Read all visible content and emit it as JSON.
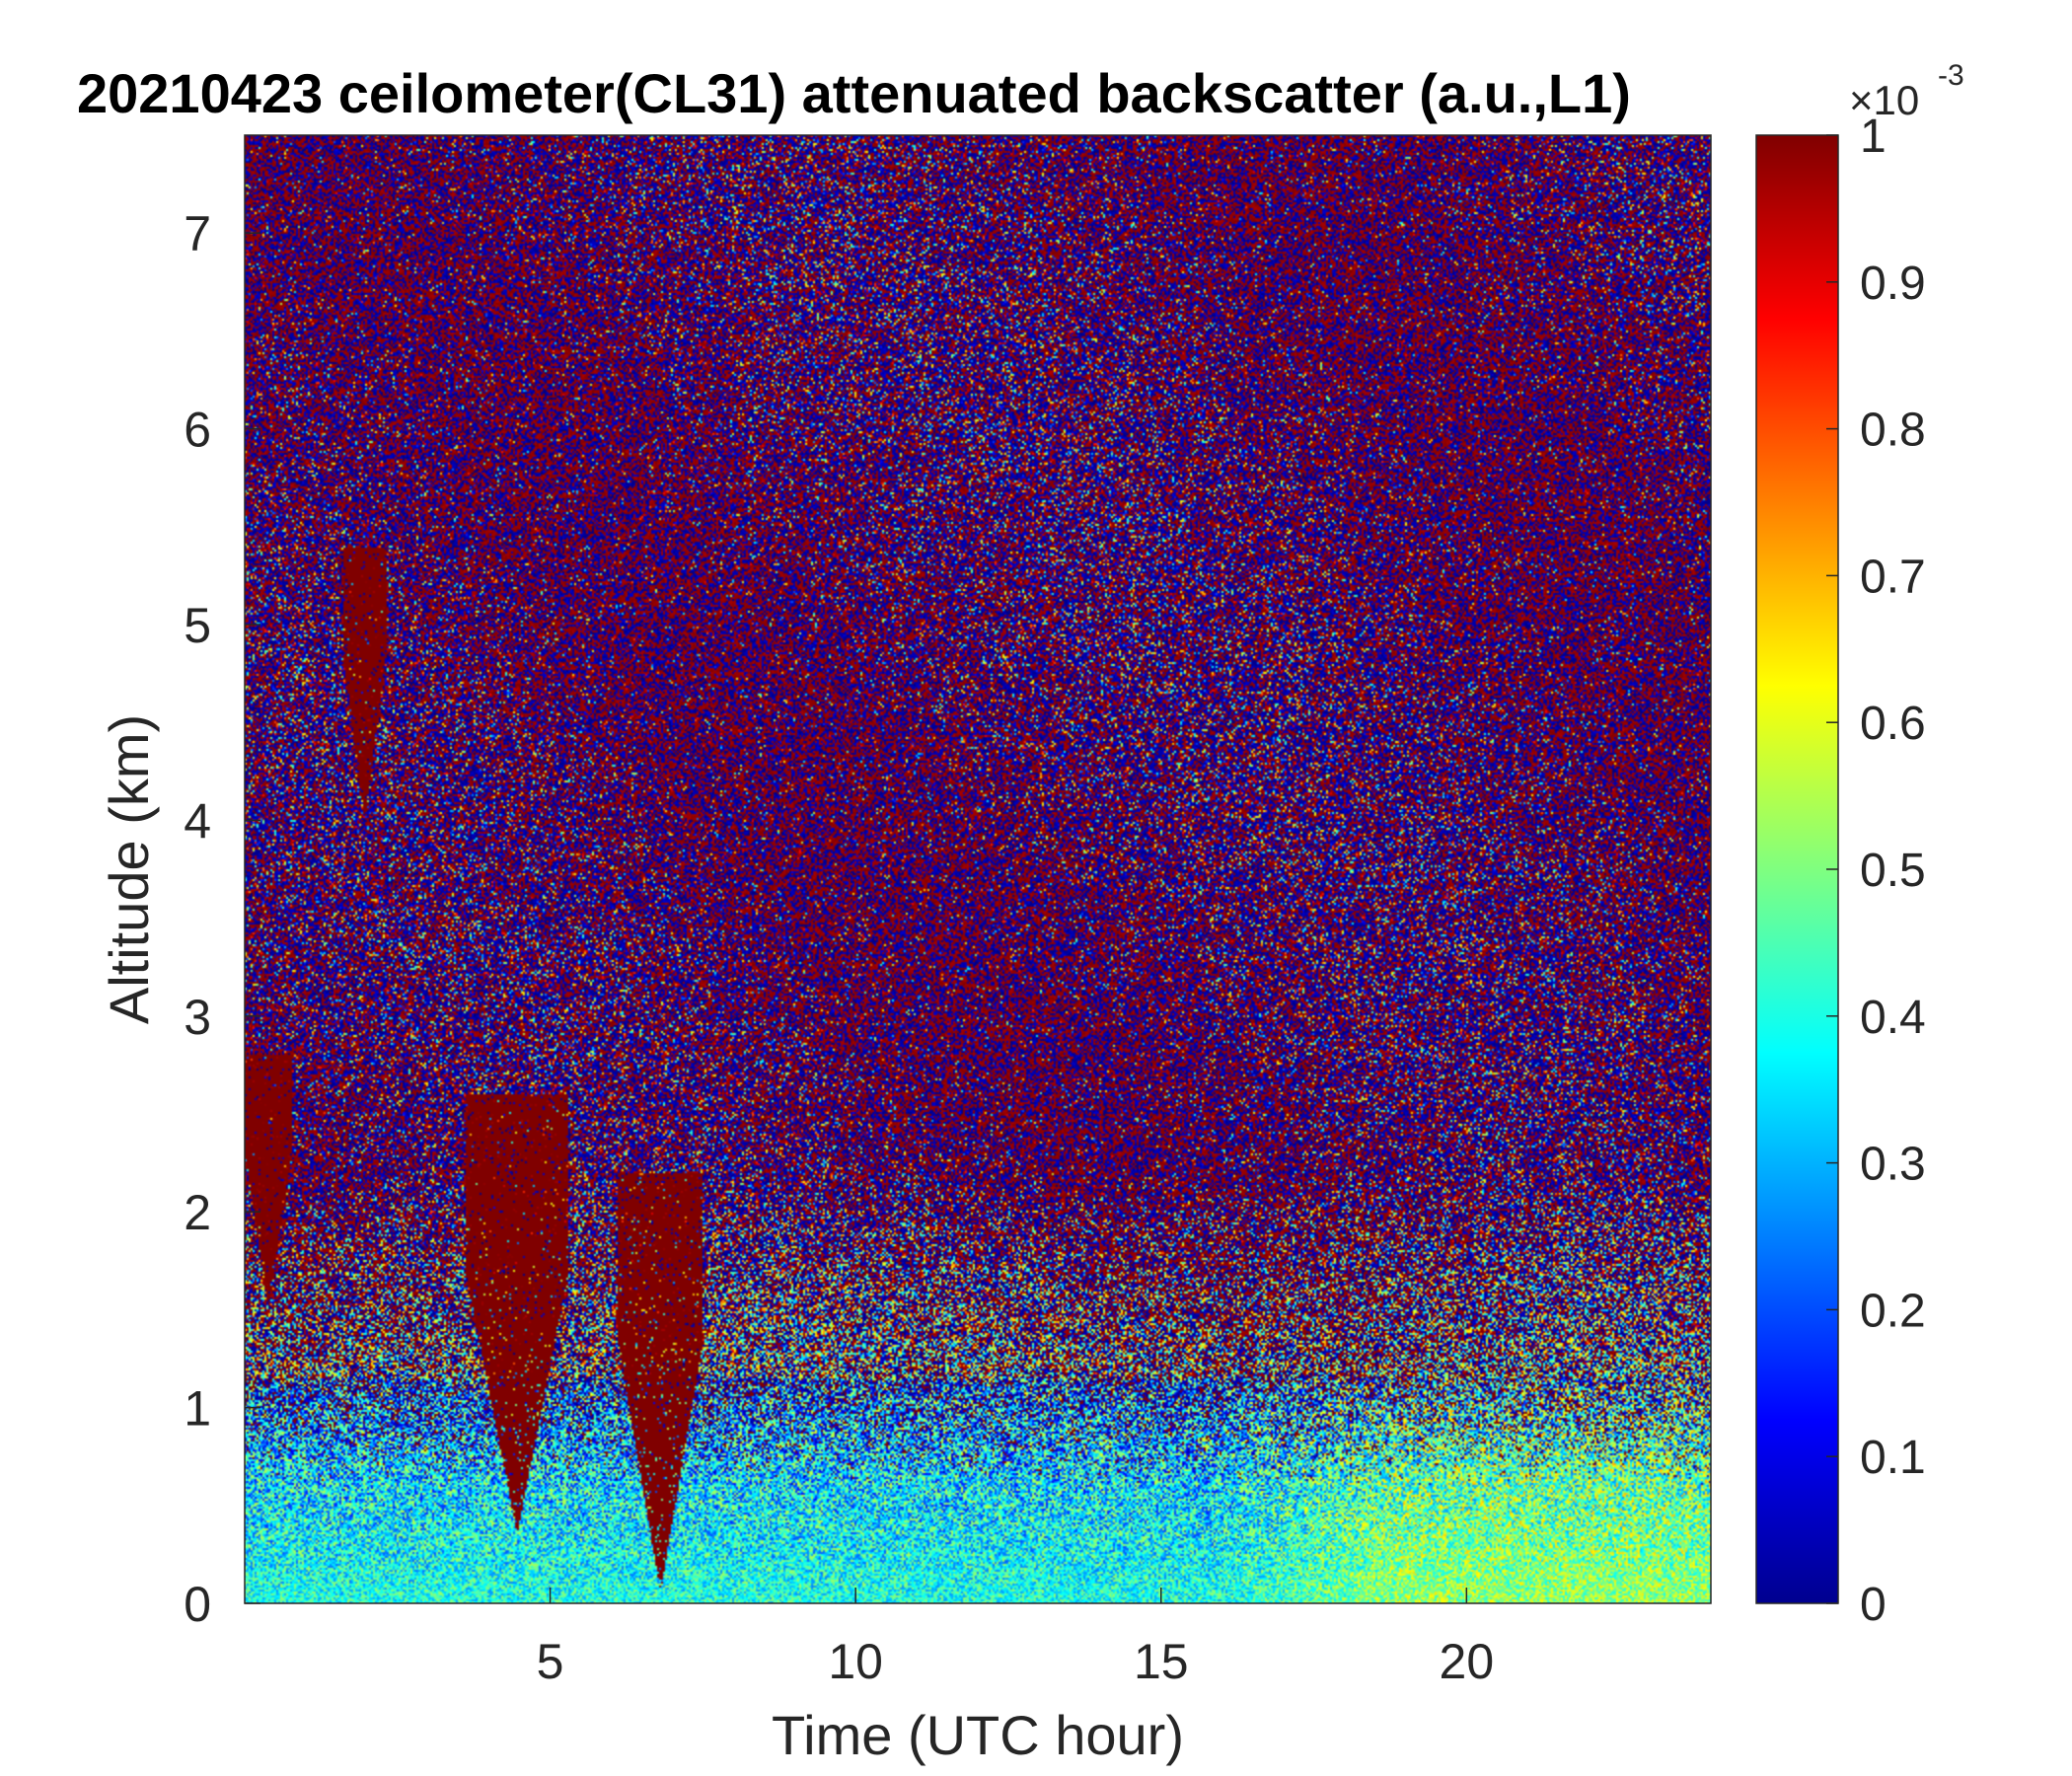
{
  "title": "20210423 ceilometer(CL31) attenuated backscatter (a.u.,L1)",
  "chart_data": {
    "type": "heatmap",
    "title": "20210423 ceilometer(CL31) attenuated backscatter (a.u.,L1)",
    "xlabel": "Time (UTC hour)",
    "ylabel": "Altitude (km)",
    "xlim": [
      0,
      24
    ],
    "ylim": [
      0,
      7.5
    ],
    "x_ticks": [
      5,
      10,
      15,
      20
    ],
    "y_ticks": [
      0,
      1,
      2,
      3,
      4,
      5,
      6,
      7
    ],
    "colorbar": {
      "colormap": "jet",
      "clim": [
        0,
        1
      ],
      "ticks": [
        0,
        0.1,
        0.2,
        0.3,
        0.4,
        0.5,
        0.6,
        0.7,
        0.8,
        0.9,
        1
      ],
      "exponent_label": "×10",
      "exponent": "-3"
    },
    "cloud_features": [
      {
        "x": [
          0.0,
          0.75
        ],
        "y": [
          1.5,
          2.8
        ]
      },
      {
        "x": [
          1.6,
          2.3
        ],
        "y": [
          4.0,
          5.4
        ]
      },
      {
        "x": [
          3.6,
          5.3
        ],
        "y": [
          0.35,
          2.6
        ]
      },
      {
        "x": [
          6.1,
          7.5
        ],
        "y": [
          0.05,
          2.2
        ]
      }
    ],
    "boundary_layer_top_km": 1.1,
    "grid": false
  }
}
